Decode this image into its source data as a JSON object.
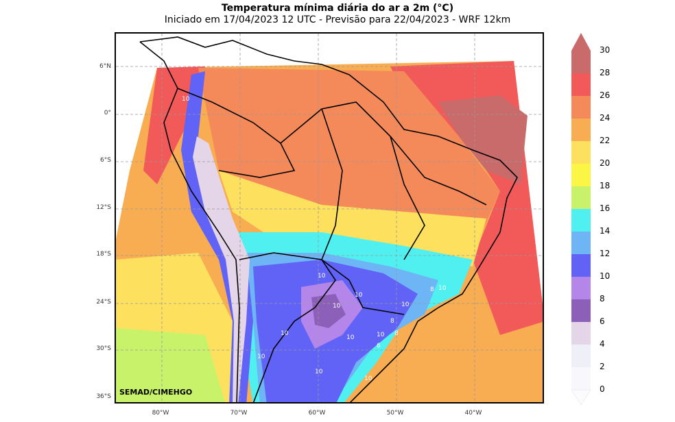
{
  "title": "Temperatura mínima diária do ar a 2m (°C)",
  "subtitle": "Iniciado em 17/04/2023 12 UTC - Previsão para 22/04/2023 - WRF 12km",
  "credit": "SEMAD/CIMEHGO",
  "lat_labels": [
    "6°N",
    "0°",
    "6°S",
    "12°S",
    "18°S",
    "24°S",
    "30°S",
    "36°S"
  ],
  "lon_labels": [
    "80°W",
    "70°W",
    "60°W",
    "50°W",
    "40°W"
  ],
  "colorbar": {
    "ticks": [
      "30",
      "28",
      "26",
      "24",
      "22",
      "20",
      "18",
      "16",
      "14",
      "12",
      "10",
      "8",
      "6",
      "4",
      "2",
      "0"
    ],
    "colors": [
      "#c96b6b",
      "#f25a5a",
      "#f48a5a",
      "#f9ad52",
      "#fde15e",
      "#fbf645",
      "#c8f26a",
      "#50f0f0",
      "#6eb5f6",
      "#6163f6",
      "#b486ea",
      "#8c60b8",
      "#e5d5e8",
      "#efeff8",
      "#f8f8fc"
    ]
  },
  "contour_labels": [
    "10",
    "10",
    "10",
    "10",
    "10",
    "10",
    "10",
    "10",
    "10",
    "10",
    "8",
    "8",
    "8",
    "6",
    "10",
    "10"
  ]
}
